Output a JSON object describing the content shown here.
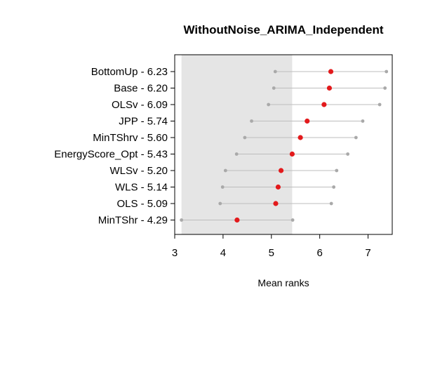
{
  "chart_data": {
    "type": "scatter",
    "title": "WithoutNoise_ARIMA_Independent",
    "xlabel": "Mean ranks",
    "ylabel": "",
    "xlim": [
      3.0,
      7.5
    ],
    "xticks": [
      3,
      4,
      5,
      6,
      7
    ],
    "grid": false,
    "legend": "none",
    "critical_band": [
      3.14,
      5.43
    ],
    "methods": [
      {
        "label": "BottomUp - 6.23",
        "mean": 6.23,
        "lower": 5.08,
        "upper": 7.38
      },
      {
        "label": "Base - 6.20",
        "mean": 6.2,
        "lower": 5.05,
        "upper": 7.35
      },
      {
        "label": "OLSv - 6.09",
        "mean": 6.09,
        "lower": 4.94,
        "upper": 7.24
      },
      {
        "label": "JPP - 5.74",
        "mean": 5.74,
        "lower": 4.59,
        "upper": 6.89
      },
      {
        "label": "MinTShrv - 5.60",
        "mean": 5.6,
        "lower": 4.45,
        "upper": 6.75
      },
      {
        "label": "EnergyScore_Opt - 5.43",
        "mean": 5.43,
        "lower": 4.28,
        "upper": 6.58
      },
      {
        "label": "WLSv - 5.20",
        "mean": 5.2,
        "lower": 4.05,
        "upper": 6.35
      },
      {
        "label": "WLS - 5.14",
        "mean": 5.14,
        "lower": 3.99,
        "upper": 6.29
      },
      {
        "label": "OLS - 5.09",
        "mean": 5.09,
        "lower": 3.94,
        "upper": 6.24
      },
      {
        "label": "MinTShr - 4.29",
        "mean": 4.29,
        "lower": 3.14,
        "upper": 5.44
      }
    ],
    "colors": {
      "point": "#e31a1c",
      "interval": "#bdbdbd",
      "endpoint": "#a9a9a9",
      "band": "#e5e5e5"
    }
  }
}
